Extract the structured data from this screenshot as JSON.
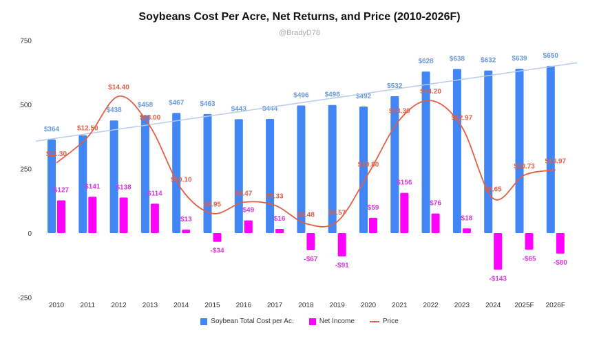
{
  "chart_data": {
    "type": "bar",
    "title": "Soybeans Cost Per Acre, Net Returns, and Price (2010-2026F)",
    "subtitle": "@BradyD78",
    "categories": [
      "2010",
      "2011",
      "2012",
      "2013",
      "2014",
      "2015",
      "2016",
      "2017",
      "2018",
      "2019",
      "2020",
      "2021",
      "2022",
      "2023",
      "2024",
      "2025F",
      "2026F"
    ],
    "ylim": [
      -250,
      750
    ],
    "yticks": [
      750,
      500,
      250,
      0,
      -250
    ],
    "grid": false,
    "legend_position": "bottom",
    "series": [
      {
        "name": "Soybean Total Cost per Ac.",
        "type": "bar",
        "color": "#4285f4",
        "values": [
          364,
          380,
          438,
          458,
          467,
          463,
          443,
          444,
          496,
          498,
          492,
          532,
          628,
          638,
          632,
          639,
          650
        ],
        "labels": [
          "$364",
          "",
          "$438",
          "$458",
          "$467",
          "$463",
          "$443",
          "$444",
          "$496",
          "$498",
          "$492",
          "$532",
          "$628",
          "$638",
          "$632",
          "$639",
          "$650"
        ]
      },
      {
        "name": "Net Income",
        "type": "bar",
        "color": "#ff00ff",
        "values": [
          127,
          141,
          138,
          114,
          13,
          -34,
          49,
          16,
          -67,
          -91,
          59,
          156,
          76,
          18,
          -143,
          -65,
          -80
        ],
        "labels": [
          "$127",
          "$141",
          "$138",
          "$114",
          "$13",
          "-$34",
          "$49",
          "$16",
          "-$67",
          "-$91",
          "$59",
          "$156",
          "$76",
          "$18",
          "-$143",
          "-$65",
          "-$80"
        ]
      },
      {
        "name": "Price",
        "type": "line",
        "color": "#e06046",
        "smooth": true,
        "values": [
          11.3,
          12.5,
          14.4,
          13.0,
          10.1,
          8.95,
          9.47,
          9.33,
          8.48,
          8.57,
          10.8,
          13.3,
          14.2,
          12.97,
          9.65,
          10.73,
          10.97
        ],
        "labels": [
          "$11.30",
          "$12.50",
          "$14.40",
          "$13.00",
          "$10.10",
          "$8.95",
          "$9.47",
          "$9.33",
          "$8.48",
          "$8.57",
          "$10.80",
          "$13.30",
          "$14.20",
          "$12.97",
          "$9.65",
          "$10.73",
          "$10.97"
        ]
      }
    ],
    "trendline": {
      "series": "Soybean Total Cost per Ac.",
      "color": "#b8cce8"
    }
  }
}
